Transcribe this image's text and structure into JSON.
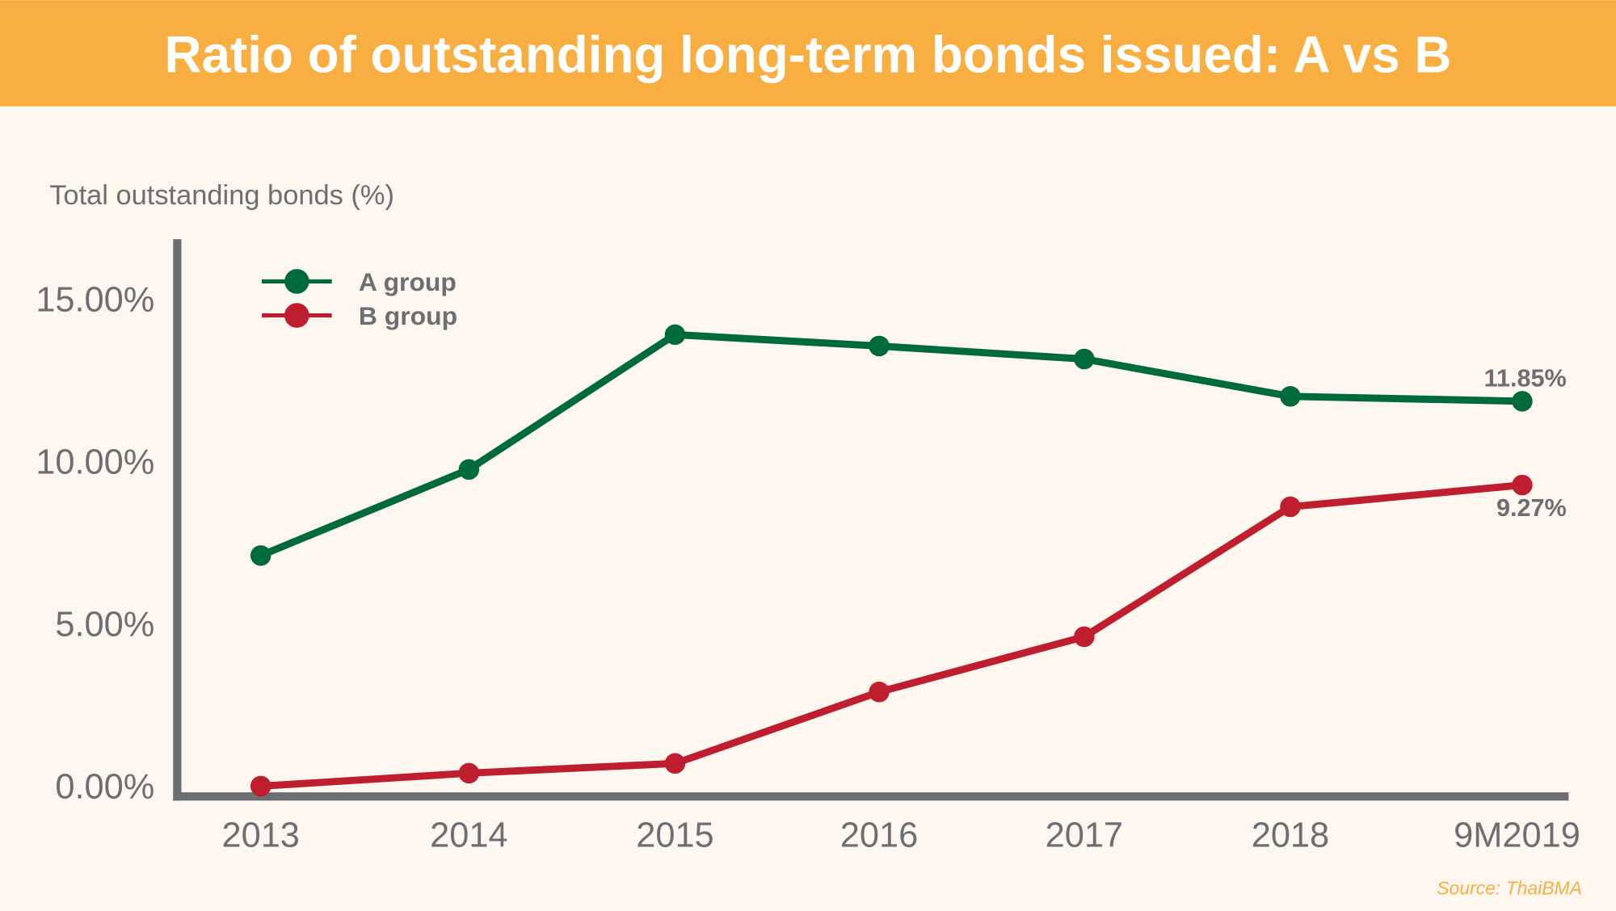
{
  "chart_data": {
    "type": "line",
    "title": "Ratio of outstanding long-term bonds issued: A vs B",
    "ylabel": "Total outstanding bonds (%)",
    "xlabel": "",
    "categories": [
      "2013",
      "2014",
      "2015",
      "2016",
      "2017",
      "2018",
      "9M2019"
    ],
    "yticks": [
      "0.00%",
      "5.00%",
      "10.00%",
      "15.00%"
    ],
    "ylim": [
      0,
      15
    ],
    "grid": false,
    "legend": "top-left",
    "series": [
      {
        "name": "A group",
        "color": "#006B3A",
        "values": [
          7.1,
          9.75,
          13.9,
          13.55,
          13.15,
          12.0,
          11.85
        ],
        "end_label": "11.85%"
      },
      {
        "name": "B group",
        "color": "#BE1E2D",
        "values": [
          0.0,
          0.4,
          0.7,
          2.9,
          4.6,
          8.6,
          9.27
        ],
        "end_label": "9.27%"
      }
    ],
    "source": "Source: ThaiBMA"
  },
  "colors": {
    "header": "#F9AE42",
    "background": "#FDF7EF",
    "axis": "#6d6e71"
  }
}
